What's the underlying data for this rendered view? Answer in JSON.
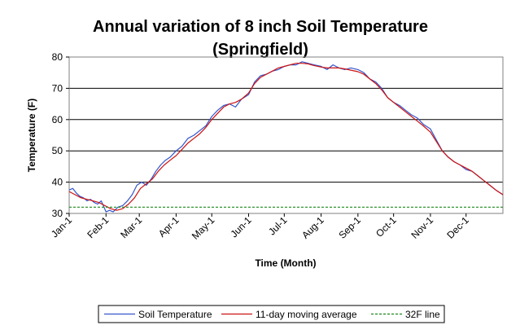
{
  "chart_data": {
    "type": "line",
    "title": "Annual variation of 8 inch Soil Temperature",
    "subtitle": "(Springfield)",
    "xlabel": "Time (Month)",
    "ylabel": "Temperature (F)",
    "ylim": [
      30,
      80
    ],
    "yticks": [
      30,
      40,
      50,
      60,
      70,
      80
    ],
    "grid": true,
    "legend_position": "bottom",
    "x_tick_labels": [
      "Jan-1",
      "Feb-1",
      "Mar-1",
      "Apr-1",
      "May-1",
      "Jun-1",
      "Jul-1",
      "Aug-1",
      "Sep-1",
      "Oct-1",
      "Nov-1",
      "Dec-1"
    ],
    "x_tick_day_of_year": [
      1,
      32,
      60,
      91,
      121,
      152,
      182,
      213,
      244,
      274,
      305,
      335
    ],
    "x_range_day_of_year": [
      1,
      366
    ],
    "series": [
      {
        "name": "Soil Temperature",
        "color": "#3355cc",
        "style": "solid",
        "x": [
          1,
          4,
          7,
          10,
          13,
          16,
          19,
          22,
          25,
          28,
          32,
          35,
          38,
          42,
          46,
          50,
          54,
          58,
          62,
          66,
          70,
          74,
          78,
          82,
          86,
          91,
          96,
          101,
          106,
          111,
          116,
          121,
          126,
          131,
          136,
          141,
          146,
          152,
          157,
          162,
          167,
          172,
          177,
          182,
          187,
          192,
          197,
          202,
          207,
          213,
          218,
          223,
          228,
          233,
          238,
          244,
          249,
          254,
          259,
          264,
          269,
          274,
          279,
          284,
          289,
          294,
          299,
          305,
          310,
          315,
          320,
          325,
          330,
          335,
          340,
          345,
          350,
          355,
          360,
          366
        ],
        "values": [
          37.5,
          38.0,
          36.5,
          35.5,
          35.0,
          34.0,
          34.5,
          33.5,
          33.0,
          34.0,
          30.5,
          31.0,
          30.5,
          32.0,
          32.5,
          34.0,
          36.0,
          39.0,
          40.0,
          39.0,
          41.0,
          43.5,
          45.5,
          47.0,
          48.0,
          50.0,
          51.5,
          54.0,
          55.0,
          56.5,
          58.0,
          61.0,
          63.0,
          64.5,
          65.0,
          64.0,
          66.5,
          68.0,
          72.0,
          74.0,
          74.5,
          75.5,
          76.0,
          77.0,
          77.5,
          77.5,
          78.5,
          78.0,
          77.5,
          77.0,
          76.0,
          77.5,
          76.5,
          76.0,
          76.5,
          76.0,
          75.0,
          73.0,
          72.0,
          70.0,
          67.0,
          65.5,
          64.5,
          63.0,
          61.5,
          60.5,
          58.5,
          57.0,
          53.5,
          50.0,
          48.0,
          46.5,
          45.5,
          44.0,
          43.5,
          42.0,
          40.5,
          39.0,
          37.5,
          36.0
        ]
      },
      {
        "name": "11-day moving average",
        "color": "#cc1111",
        "style": "solid",
        "x": [
          1,
          6,
          11,
          16,
          21,
          26,
          31,
          36,
          41,
          46,
          51,
          56,
          61,
          66,
          71,
          76,
          81,
          86,
          91,
          96,
          101,
          106,
          111,
          116,
          121,
          126,
          131,
          136,
          141,
          146,
          152,
          157,
          162,
          167,
          172,
          177,
          182,
          187,
          192,
          197,
          202,
          207,
          213,
          218,
          223,
          228,
          233,
          238,
          244,
          249,
          254,
          259,
          264,
          269,
          274,
          279,
          284,
          289,
          294,
          299,
          305,
          310,
          315,
          320,
          325,
          330,
          335,
          340,
          345,
          350,
          355,
          360,
          366
        ],
        "values": [
          37.0,
          36.0,
          35.0,
          34.5,
          34.0,
          33.5,
          32.5,
          31.5,
          31.0,
          31.5,
          33.0,
          35.0,
          38.0,
          39.5,
          41.0,
          43.5,
          45.5,
          47.0,
          48.5,
          50.5,
          52.5,
          54.0,
          55.5,
          57.5,
          60.0,
          62.0,
          64.0,
          65.0,
          65.5,
          66.5,
          68.5,
          71.5,
          73.5,
          74.5,
          75.5,
          76.5,
          77.0,
          77.5,
          78.0,
          78.0,
          77.8,
          77.3,
          76.8,
          76.5,
          76.5,
          76.5,
          76.2,
          75.8,
          75.3,
          74.5,
          73.0,
          71.5,
          69.5,
          67.0,
          65.5,
          64.0,
          62.5,
          61.0,
          59.5,
          58.0,
          56.0,
          53.0,
          50.0,
          48.0,
          46.5,
          45.5,
          44.5,
          43.5,
          42.0,
          40.5,
          39.0,
          37.5,
          36.0
        ]
      },
      {
        "name": "32F line",
        "color": "#1a8a1a",
        "style": "dashed",
        "x": [
          1,
          366
        ],
        "values": [
          32,
          32
        ]
      }
    ]
  }
}
